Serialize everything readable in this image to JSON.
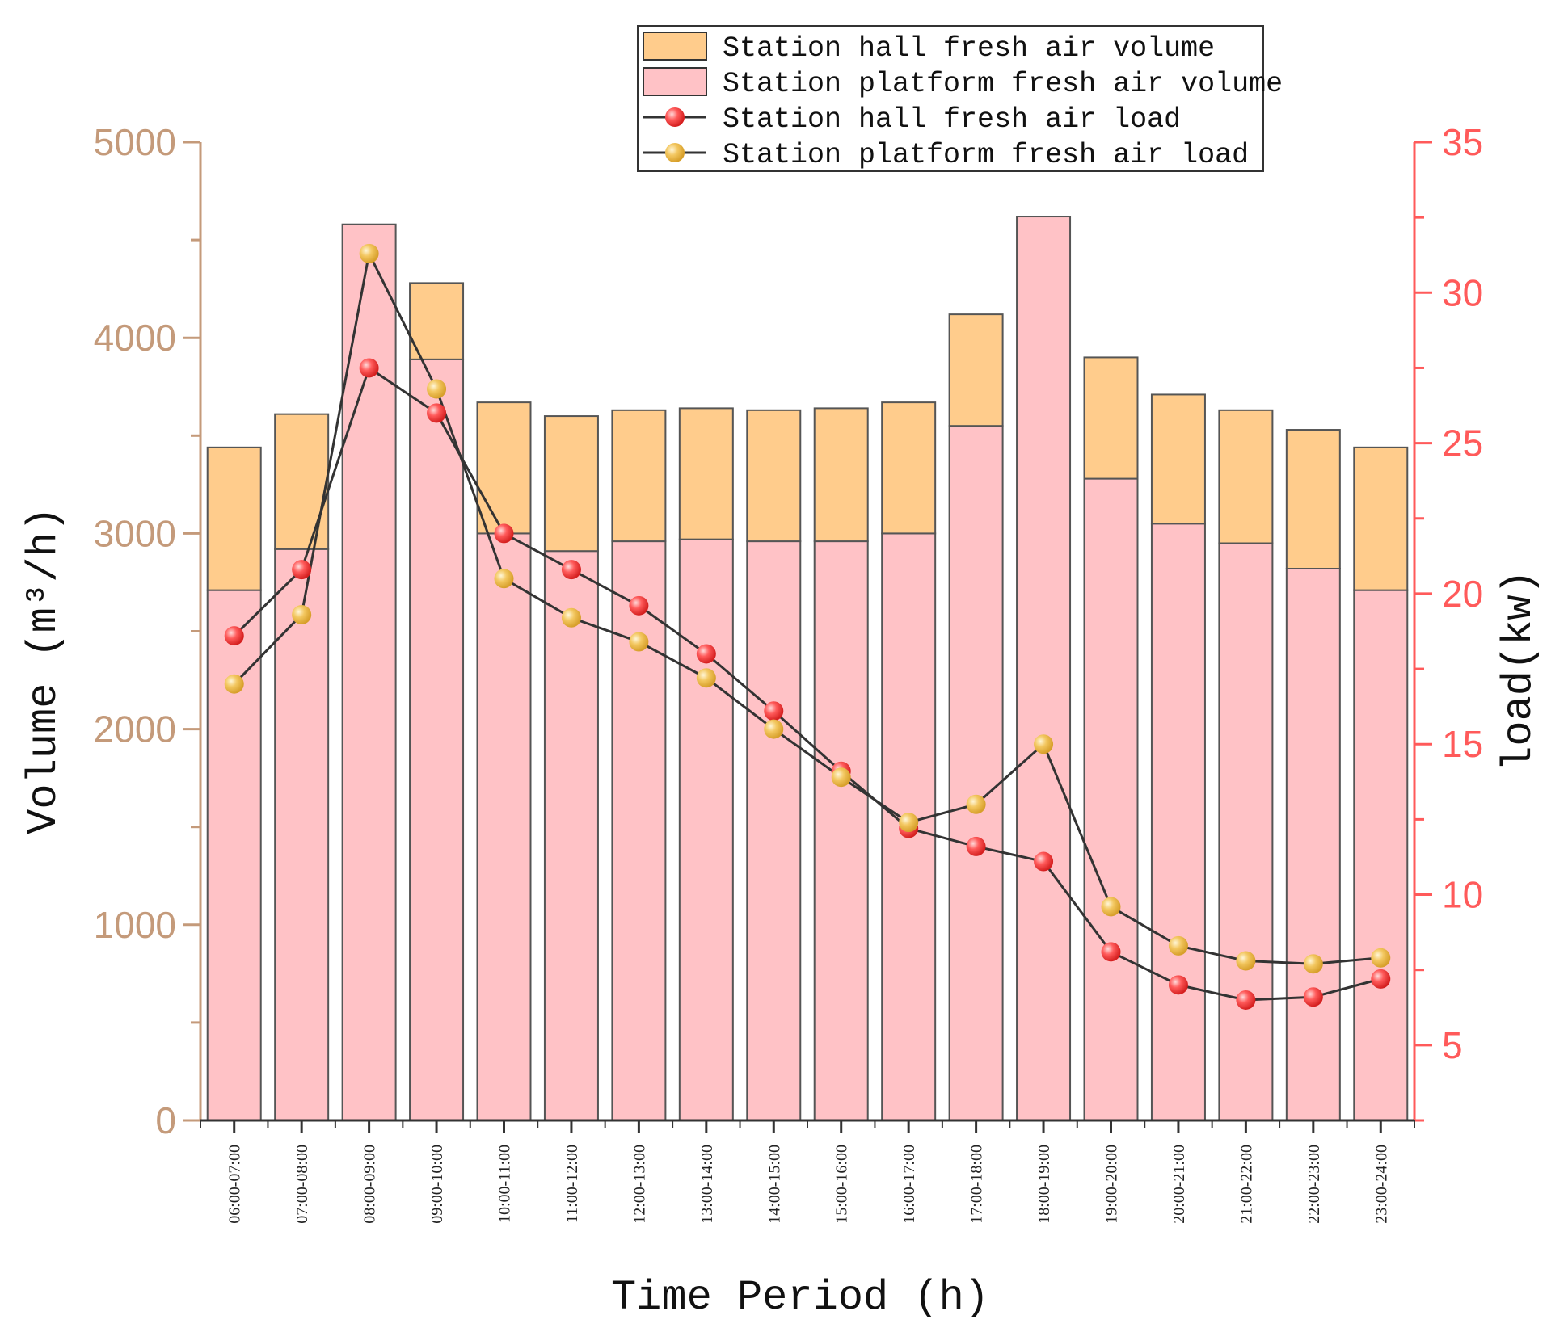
{
  "chart_data": {
    "type": "bar",
    "stacked": true,
    "categories": [
      "06:00-07:00",
      "07:00-08:00",
      "08:00-09:00",
      "09:00-10:00",
      "10:00-11:00",
      "11:00-12:00",
      "12:00-13:00",
      "13:00-14:00",
      "14:00-15:00",
      "15:00-16:00",
      "16:00-17:00",
      "17:00-18:00",
      "18:00-19:00",
      "19:00-20:00",
      "20:00-21:00",
      "21:00-22:00",
      "22:00-23:00",
      "23:00-24:00"
    ],
    "bar_series": [
      {
        "name": "Station platform fresh air volume",
        "color": "#ffc2c6",
        "values": [
          2710,
          2920,
          4580,
          3890,
          3000,
          2910,
          2960,
          2970,
          2960,
          2960,
          3000,
          3550,
          4620,
          3280,
          3050,
          2950,
          2820,
          2710
        ]
      },
      {
        "name": "Station hall fresh air volume",
        "color": "#ffcc8c",
        "values": [
          730,
          690,
          0,
          390,
          670,
          690,
          670,
          670,
          670,
          680,
          670,
          570,
          0,
          620,
          660,
          680,
          710,
          730
        ]
      }
    ],
    "line_series": [
      {
        "name": "Station hall fresh air load",
        "color": "#ff4040",
        "values": [
          18.6,
          20.8,
          27.5,
          26.0,
          22.0,
          20.8,
          19.6,
          18.0,
          16.1,
          14.1,
          12.2,
          11.6,
          11.1,
          8.1,
          7.0,
          6.5,
          6.6,
          7.2
        ]
      },
      {
        "name": "Station platform fresh air load",
        "color": "#f0c050",
        "values": [
          17.0,
          19.3,
          31.3,
          26.8,
          20.5,
          19.2,
          18.4,
          17.2,
          15.5,
          13.9,
          12.4,
          13.0,
          15.0,
          9.6,
          8.3,
          7.8,
          7.7,
          7.9
        ]
      }
    ],
    "legend": [
      "Station hall fresh air volume",
      "Station platform fresh air volume",
      "Station hall fresh air load",
      "Station platform fresh air load"
    ],
    "legend_position": "top-right",
    "xlabel": "Time Period (h)",
    "ylabel_left": "Volume (m³/h)",
    "ylabel_right": "load(kw)",
    "ylim_left": [
      0,
      5000
    ],
    "yticks_left": [
      0,
      1000,
      2000,
      3000,
      4000,
      5000
    ],
    "ylim_right": [
      2.5,
      35
    ],
    "yticks_right": [
      5,
      10,
      15,
      20,
      25,
      30,
      35
    ],
    "colors": {
      "left_axis": "#c49a7a",
      "right_axis": "#ff5a5a",
      "line": "#333333"
    }
  }
}
